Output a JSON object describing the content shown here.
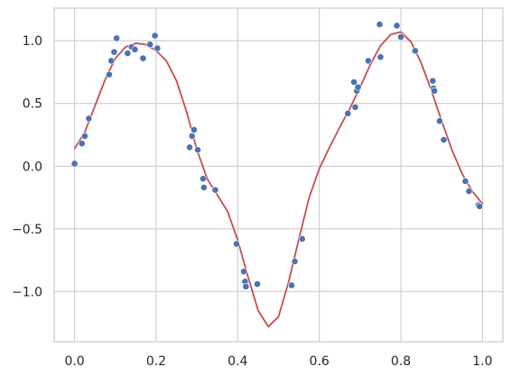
{
  "chart_data": {
    "type": "scatter",
    "title": "",
    "xlabel": "",
    "ylabel": "",
    "xlim": [
      -0.05,
      1.05
    ],
    "ylim": [
      -1.4,
      1.26
    ],
    "xticks": [
      0.0,
      0.2,
      0.4,
      0.6,
      0.8,
      1.0
    ],
    "xtick_labels": [
      "0.0",
      "0.2",
      "0.4",
      "0.6",
      "0.8",
      "1.0"
    ],
    "yticks": [
      1.0,
      0.5,
      0.0,
      -0.5,
      -1.0
    ],
    "ytick_labels": [
      "1.0",
      "0.5",
      "0.0",
      "−0.5",
      "−1.0"
    ],
    "grid": true,
    "legend": "none",
    "colors": {
      "points": "#4c72b0",
      "curve": "#c44e52",
      "grid": "#cccccc",
      "axes": "#cccccc"
    },
    "series": [
      {
        "kind": "scatter",
        "points": [
          [
            0.0,
            0.02
          ],
          [
            0.018,
            0.18
          ],
          [
            0.025,
            0.24
          ],
          [
            0.035,
            0.38
          ],
          [
            0.085,
            0.73
          ],
          [
            0.09,
            0.84
          ],
          [
            0.097,
            0.91
          ],
          [
            0.103,
            1.02
          ],
          [
            0.13,
            0.9
          ],
          [
            0.14,
            0.95
          ],
          [
            0.148,
            0.93
          ],
          [
            0.168,
            0.86
          ],
          [
            0.185,
            0.97
          ],
          [
            0.197,
            1.04
          ],
          [
            0.203,
            0.94
          ],
          [
            0.282,
            0.15
          ],
          [
            0.288,
            0.24
          ],
          [
            0.293,
            0.29
          ],
          [
            0.302,
            0.13
          ],
          [
            0.315,
            -0.1
          ],
          [
            0.317,
            -0.17
          ],
          [
            0.345,
            -0.19
          ],
          [
            0.397,
            -0.62
          ],
          [
            0.415,
            -0.84
          ],
          [
            0.418,
            -0.92
          ],
          [
            0.42,
            -0.96
          ],
          [
            0.448,
            -0.94
          ],
          [
            0.532,
            -0.95
          ],
          [
            0.54,
            -0.76
          ],
          [
            0.558,
            -0.58
          ],
          [
            0.67,
            0.42
          ],
          [
            0.685,
            0.67
          ],
          [
            0.688,
            0.47
          ],
          [
            0.692,
            0.6
          ],
          [
            0.695,
            0.63
          ],
          [
            0.72,
            0.84
          ],
          [
            0.748,
            1.13
          ],
          [
            0.75,
            0.87
          ],
          [
            0.79,
            1.12
          ],
          [
            0.8,
            1.03
          ],
          [
            0.835,
            0.92
          ],
          [
            0.878,
            0.68
          ],
          [
            0.88,
            0.62
          ],
          [
            0.882,
            0.6
          ],
          [
            0.895,
            0.36
          ],
          [
            0.905,
            0.21
          ],
          [
            0.958,
            -0.12
          ],
          [
            0.967,
            -0.2
          ],
          [
            0.99,
            -0.31
          ],
          [
            0.993,
            -0.32
          ]
        ]
      },
      {
        "kind": "line",
        "points": [
          [
            0.0,
            0.14
          ],
          [
            0.025,
            0.27
          ],
          [
            0.05,
            0.48
          ],
          [
            0.075,
            0.69
          ],
          [
            0.1,
            0.86
          ],
          [
            0.125,
            0.95
          ],
          [
            0.15,
            0.98
          ],
          [
            0.175,
            0.97
          ],
          [
            0.2,
            0.92
          ],
          [
            0.225,
            0.84
          ],
          [
            0.25,
            0.68
          ],
          [
            0.275,
            0.43
          ],
          [
            0.3,
            0.13
          ],
          [
            0.325,
            -0.1
          ],
          [
            0.35,
            -0.23
          ],
          [
            0.375,
            -0.36
          ],
          [
            0.4,
            -0.59
          ],
          [
            0.425,
            -0.88
          ],
          [
            0.45,
            -1.15
          ],
          [
            0.475,
            -1.28
          ],
          [
            0.5,
            -1.2
          ],
          [
            0.525,
            -0.92
          ],
          [
            0.55,
            -0.58
          ],
          [
            0.575,
            -0.25
          ],
          [
            0.6,
            -0.02
          ],
          [
            0.625,
            0.15
          ],
          [
            0.65,
            0.31
          ],
          [
            0.675,
            0.46
          ],
          [
            0.7,
            0.63
          ],
          [
            0.725,
            0.81
          ],
          [
            0.75,
            0.96
          ],
          [
            0.775,
            1.05
          ],
          [
            0.8,
            1.07
          ],
          [
            0.825,
            0.99
          ],
          [
            0.85,
            0.82
          ],
          [
            0.875,
            0.6
          ],
          [
            0.9,
            0.36
          ],
          [
            0.925,
            0.13
          ],
          [
            0.95,
            -0.06
          ],
          [
            0.975,
            -0.2
          ],
          [
            1.0,
            -0.3
          ]
        ]
      }
    ]
  }
}
